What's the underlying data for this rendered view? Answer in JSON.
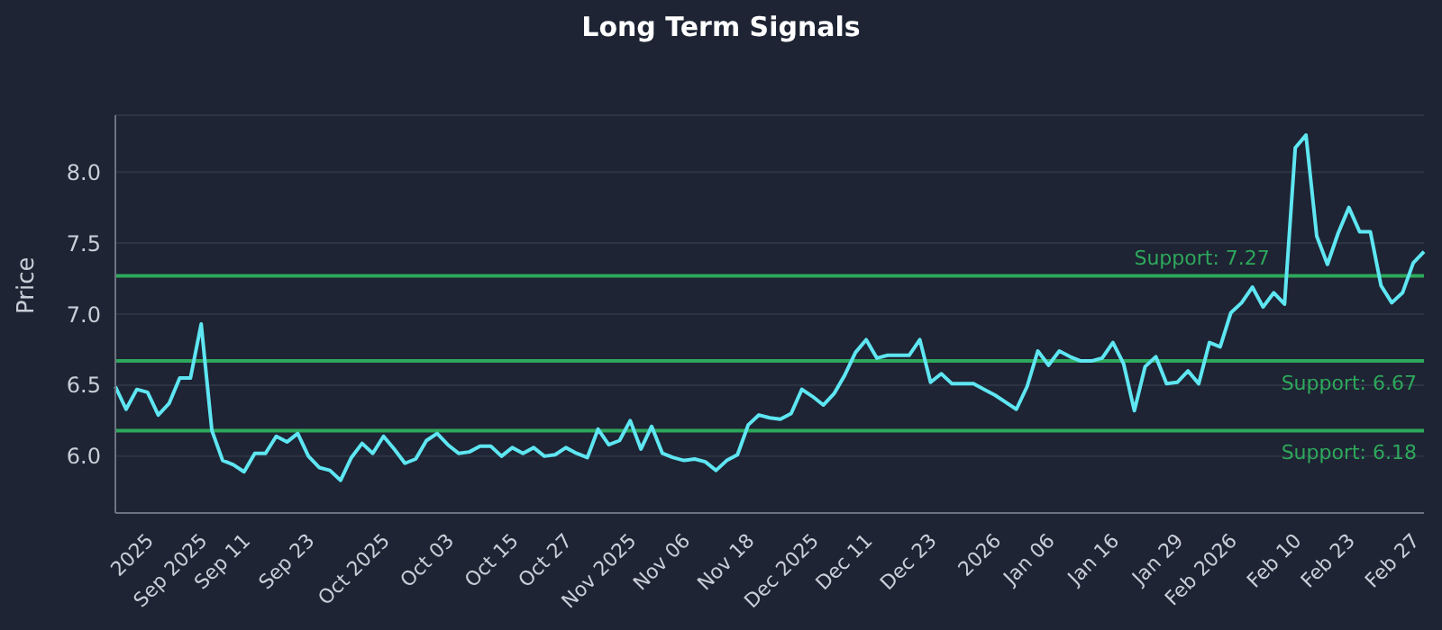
{
  "chart_data": {
    "type": "line",
    "title": "Long Term Signals",
    "ylabel": "Price",
    "categories": [
      null,
      null,
      null,
      "2025",
      null,
      null,
      null,
      null,
      "Sep 2025",
      null,
      null,
      null,
      "Sep 11",
      null,
      null,
      null,
      null,
      null,
      "Sep 23",
      null,
      null,
      null,
      null,
      null,
      null,
      "Oct 2025",
      null,
      null,
      null,
      null,
      null,
      "Oct 03",
      null,
      null,
      null,
      null,
      null,
      "Oct 15",
      null,
      null,
      null,
      null,
      "Oct 27",
      null,
      null,
      null,
      null,
      null,
      "Nov 2025",
      null,
      null,
      null,
      null,
      "Nov 06",
      null,
      null,
      null,
      null,
      null,
      "Nov 18",
      null,
      null,
      null,
      null,
      null,
      "Dec 2025",
      null,
      null,
      null,
      null,
      "Dec 11",
      null,
      null,
      null,
      null,
      null,
      "Dec 23",
      null,
      null,
      null,
      null,
      null,
      "2026",
      null,
      null,
      null,
      null,
      "Jan 06",
      null,
      null,
      null,
      null,
      null,
      "Jan 16",
      null,
      null,
      null,
      null,
      null,
      "Jan 29",
      null,
      null,
      null,
      null,
      "Feb 2026",
      null,
      null,
      null,
      null,
      null,
      "Feb 10",
      null,
      null,
      null,
      null,
      "Feb 23",
      null,
      null,
      null,
      null,
      null,
      "Feb 27",
      null
    ],
    "series": [
      {
        "color": "#5ee6f2",
        "values": [
          6.49,
          6.33,
          6.47,
          6.45,
          6.29,
          6.37,
          6.55,
          6.55,
          6.93,
          6.18,
          5.97,
          5.94,
          5.89,
          6.02,
          6.02,
          6.14,
          6.1,
          6.16,
          6.0,
          5.92,
          5.9,
          5.83,
          5.99,
          6.09,
          6.02,
          6.14,
          6.05,
          5.95,
          5.98,
          6.11,
          6.16,
          6.08,
          6.02,
          6.03,
          6.07,
          6.07,
          6.0,
          6.06,
          6.02,
          6.06,
          6.0,
          6.01,
          6.06,
          6.02,
          5.99,
          6.19,
          6.08,
          6.11,
          6.25,
          6.05,
          6.21,
          6.02,
          5.99,
          5.97,
          5.98,
          5.96,
          5.9,
          5.97,
          6.01,
          6.22,
          6.29,
          6.27,
          6.26,
          6.3,
          6.47,
          6.42,
          6.36,
          6.44,
          6.57,
          6.73,
          6.82,
          6.69,
          6.71,
          6.71,
          6.71,
          6.82,
          6.52,
          6.58,
          6.51,
          6.51,
          6.51,
          6.47,
          6.43,
          6.38,
          6.33,
          6.49,
          6.74,
          6.64,
          6.74,
          6.7,
          6.67,
          6.67,
          6.69,
          6.8,
          6.65,
          6.32,
          6.63,
          6.7,
          6.51,
          6.52,
          6.6,
          6.51,
          6.8,
          6.77,
          7.01,
          7.08,
          7.19,
          7.05,
          7.15,
          7.07,
          8.17,
          8.26,
          7.55,
          7.35,
          7.57,
          7.75,
          7.58,
          7.58,
          7.2,
          7.08,
          7.15,
          7.36,
          7.44
        ]
      }
    ],
    "ylim": [
      5.6,
      8.4
    ],
    "yticks": [
      {
        "value": 6,
        "label": "6.0"
      },
      {
        "value": 6.5,
        "label": "6.5"
      },
      {
        "value": 7,
        "label": "7.0"
      },
      {
        "value": 7.5,
        "label": "7.5"
      },
      {
        "value": 8,
        "label": "8.0"
      }
    ],
    "grid": "y",
    "marker": "none",
    "line_style": "solid",
    "ref_lines": [
      {
        "axis": "y",
        "value": 7.27,
        "label": "Support: 7.27",
        "color": "#2ea85c"
      },
      {
        "axis": "y",
        "value": 6.67,
        "label": "Support: 6.67",
        "color": "#2ea85c"
      },
      {
        "axis": "y",
        "value": 6.18,
        "label": "Support: 6.18",
        "color": "#2ea85c"
      }
    ]
  }
}
